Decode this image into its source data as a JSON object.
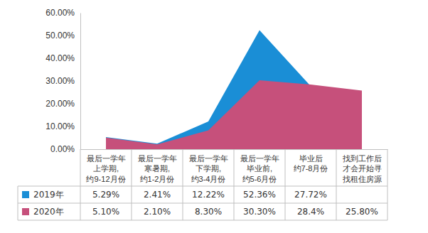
{
  "chart_data": {
    "type": "area",
    "categories": [
      "最后一学年\n上学期,\n约9-12月份",
      "最后一学年\n寒暑期,\n约1-2月份",
      "最后一学年\n下学期,\n约3-4月份",
      "最后一学年\n毕业前,\n约5-6月份",
      "毕业后\n约7-8月份",
      "找到工作后\n才会开始寻\n找租住房源"
    ],
    "series": [
      {
        "name": "2019年",
        "color": "#1a8ed6",
        "values": [
          5.29,
          2.41,
          12.22,
          52.36,
          27.72,
          null
        ],
        "value_labels": [
          "5.29%",
          "2.41%",
          "12.22%",
          "52.36%",
          "27.72%",
          null
        ]
      },
      {
        "name": "2020年",
        "color": "#c6507b",
        "values": [
          5.1,
          2.1,
          8.3,
          30.3,
          28.4,
          25.8
        ],
        "value_labels": [
          "5.10%",
          "2.10%",
          "8.30%",
          "30.30%",
          "28.4%",
          "25.80%"
        ]
      }
    ],
    "ylim": [
      0,
      60
    ],
    "yticks": [
      {
        "value": 0,
        "label": "0.00%"
      },
      {
        "value": 10,
        "label": "10.00%"
      },
      {
        "value": 20,
        "label": "20.00%"
      },
      {
        "value": 30,
        "label": "30.00%"
      },
      {
        "value": 40,
        "label": "40.00%"
      },
      {
        "value": 50,
        "label": "50.00%"
      },
      {
        "value": 60,
        "label": "60.00%"
      }
    ]
  }
}
